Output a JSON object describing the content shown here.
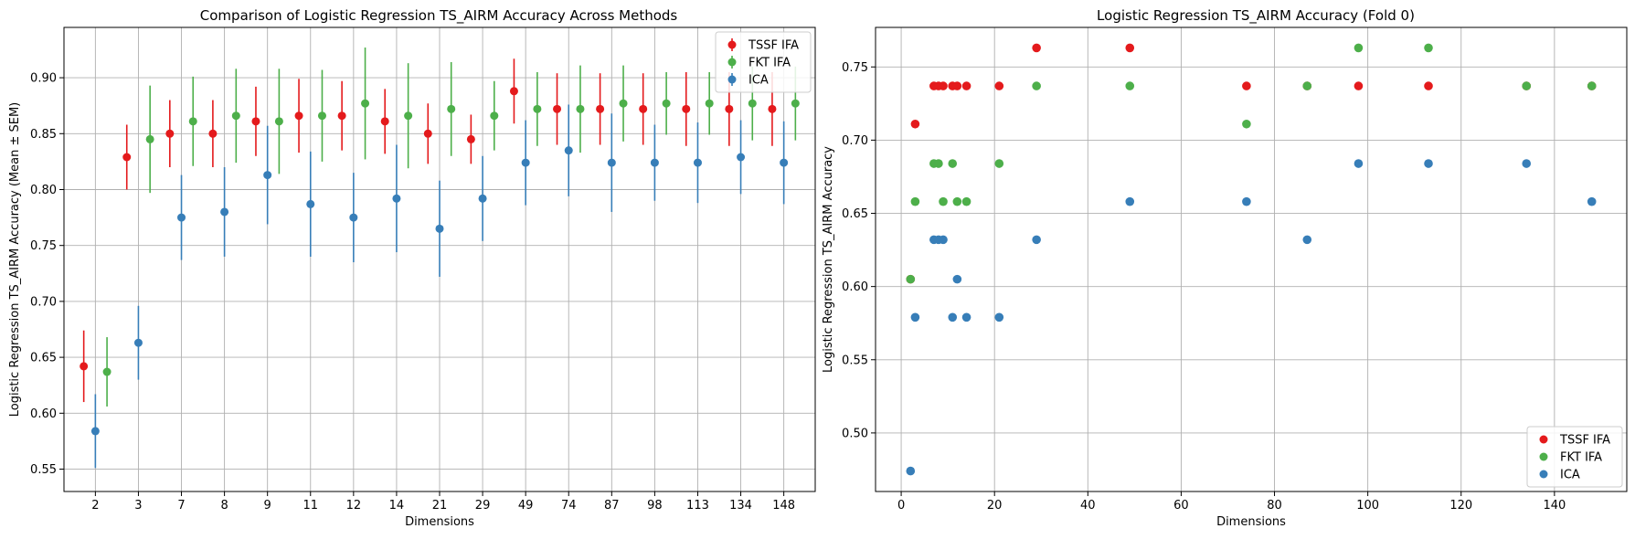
{
  "chart_data": [
    {
      "type": "scatter",
      "variant": "errorbar",
      "title": "Comparison of Logistic Regression TS_AIRM Accuracy Across Methods",
      "xlabel": "Dimensions",
      "ylabel": "Logistic Regression TS_AIRM Accuracy (Mean ± SEM)",
      "categories": [
        "2",
        "3",
        "7",
        "8",
        "9",
        "11",
        "12",
        "14",
        "21",
        "29",
        "49",
        "74",
        "87",
        "98",
        "113",
        "134",
        "148"
      ],
      "yticks": [
        "0.55",
        "0.60",
        "0.65",
        "0.70",
        "0.75",
        "0.80",
        "0.85",
        "0.90"
      ],
      "ylim": [
        0.53,
        0.945
      ],
      "grid": true,
      "legend": "top-right",
      "series": [
        {
          "name": "TSSF IFA",
          "color": "#e41a1c",
          "mean": [
            0.642,
            0.829,
            0.85,
            0.85,
            0.861,
            0.866,
            0.866,
            0.861,
            0.85,
            0.845,
            0.888,
            0.872,
            0.872,
            0.872,
            0.872,
            0.872,
            0.872
          ],
          "sem": [
            0.032,
            0.029,
            0.03,
            0.03,
            0.031,
            0.033,
            0.031,
            0.029,
            0.027,
            0.022,
            0.029,
            0.032,
            0.032,
            0.032,
            0.033,
            0.033,
            0.033
          ]
        },
        {
          "name": "FKT IFA",
          "color": "#4daf4a",
          "mean": [
            0.637,
            0.845,
            0.861,
            0.866,
            0.861,
            0.866,
            0.877,
            0.866,
            0.872,
            0.866,
            0.872,
            0.872,
            0.877,
            0.877,
            0.877,
            0.877,
            0.877
          ],
          "sem": [
            0.031,
            0.048,
            0.04,
            0.042,
            0.047,
            0.041,
            0.05,
            0.047,
            0.042,
            0.031,
            0.033,
            0.039,
            0.034,
            0.028,
            0.028,
            0.033,
            0.033
          ]
        },
        {
          "name": "ICA",
          "color": "#377eb8",
          "mean": [
            0.584,
            0.663,
            0.775,
            0.78,
            0.813,
            0.787,
            0.775,
            0.792,
            0.765,
            0.792,
            0.824,
            0.835,
            0.824,
            0.824,
            0.824,
            0.829,
            0.824
          ],
          "sem": [
            0.033,
            0.033,
            0.038,
            0.04,
            0.044,
            0.047,
            0.04,
            0.048,
            0.043,
            0.038,
            0.038,
            0.041,
            0.044,
            0.034,
            0.036,
            0.033,
            0.037
          ]
        }
      ]
    },
    {
      "type": "scatter",
      "title": "Logistic Regression TS_AIRM Accuracy (Fold 0)",
      "xlabel": "Dimensions",
      "ylabel": "Logistic Regression TS_AIRM Accuracy",
      "xticks": [
        "0",
        "20",
        "40",
        "60",
        "80",
        "100",
        "120",
        "140"
      ],
      "yticks": [
        "0.50",
        "0.55",
        "0.60",
        "0.65",
        "0.70",
        "0.75"
      ],
      "xlim": [
        -5.5,
        155.5
      ],
      "ylim": [
        0.46,
        0.777
      ],
      "grid": true,
      "legend": "bottom-right",
      "series": [
        {
          "name": "TSSF IFA",
          "color": "#e41a1c",
          "x": [
            2,
            3,
            7,
            8,
            9,
            11,
            12,
            14,
            21,
            29,
            49,
            74,
            87,
            98,
            113,
            134,
            148
          ],
          "y": [
            0.605,
            0.711,
            0.737,
            0.737,
            0.737,
            0.737,
            0.737,
            0.737,
            0.737,
            0.763,
            0.763,
            0.737,
            0.737,
            0.737,
            0.737,
            0.737,
            0.737
          ]
        },
        {
          "name": "FKT IFA",
          "color": "#4daf4a",
          "x": [
            2,
            3,
            7,
            8,
            9,
            11,
            12,
            14,
            21,
            29,
            49,
            74,
            87,
            98,
            113,
            134,
            148
          ],
          "y": [
            0.605,
            0.658,
            0.684,
            0.684,
            0.658,
            0.684,
            0.658,
            0.658,
            0.684,
            0.737,
            0.737,
            0.711,
            0.737,
            0.763,
            0.763,
            0.737,
            0.737
          ]
        },
        {
          "name": "ICA",
          "color": "#377eb8",
          "x": [
            2,
            3,
            7,
            8,
            9,
            11,
            12,
            14,
            21,
            29,
            49,
            74,
            87,
            98,
            113,
            134,
            148
          ],
          "y": [
            0.474,
            0.579,
            0.632,
            0.632,
            0.632,
            0.579,
            0.605,
            0.579,
            0.579,
            0.632,
            0.658,
            0.658,
            0.632,
            0.684,
            0.684,
            0.684,
            0.658
          ]
        }
      ]
    }
  ]
}
